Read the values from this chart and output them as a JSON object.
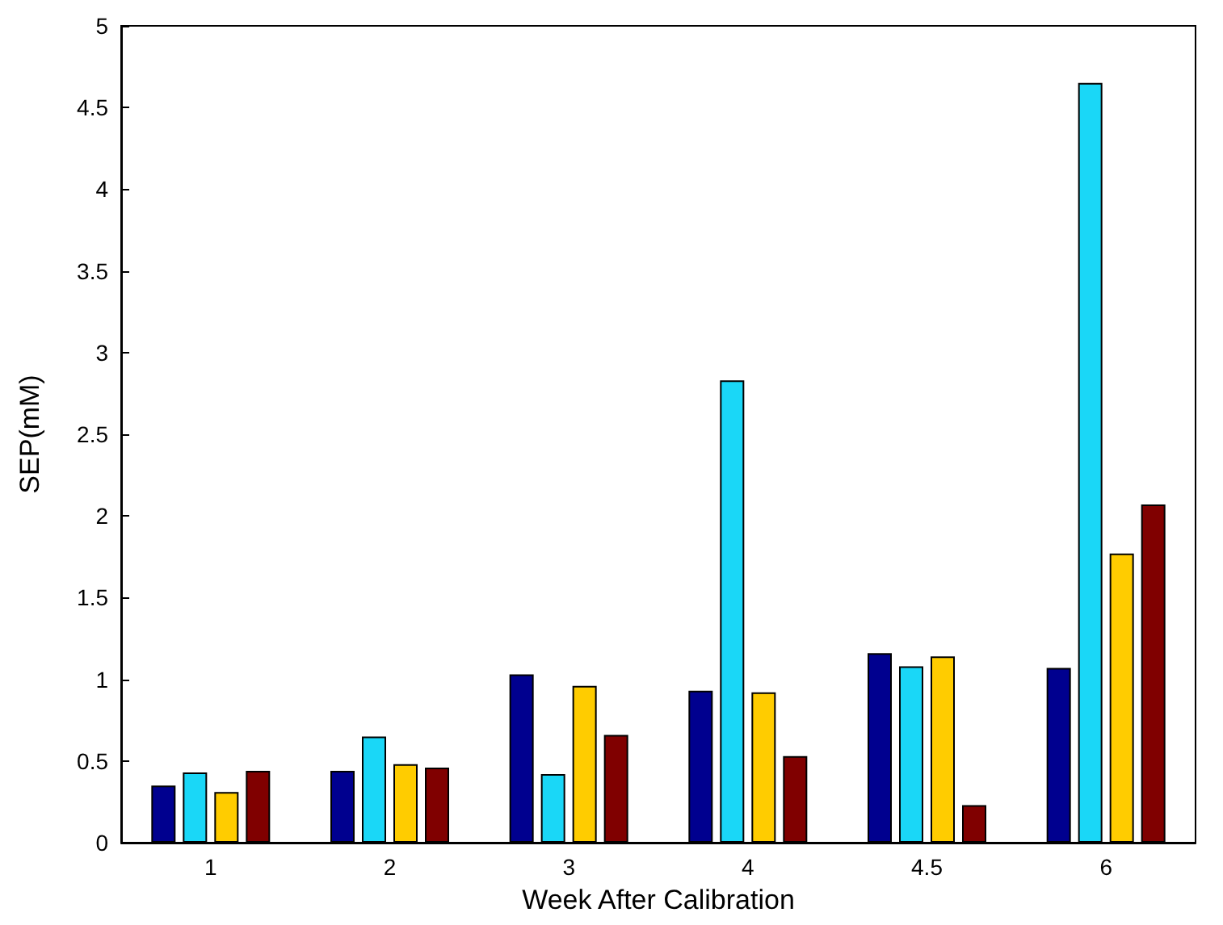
{
  "chart_data": {
    "type": "bar",
    "xlabel": "Week After Calibration",
    "ylabel": "SEP(mM)",
    "categories": [
      "1",
      "2",
      "3",
      "4",
      "4.5",
      "6"
    ],
    "series": [
      {
        "color": "#00008f",
        "values": [
          0.35,
          0.44,
          1.03,
          0.93,
          1.16,
          1.07
        ]
      },
      {
        "color": "#1ad7f7",
        "values": [
          0.43,
          0.65,
          0.42,
          2.83,
          1.08,
          4.65
        ]
      },
      {
        "color": "#ffcc00",
        "values": [
          0.31,
          0.48,
          0.96,
          0.92,
          1.14,
          1.77
        ]
      },
      {
        "color": "#800000",
        "values": [
          0.44,
          0.46,
          0.66,
          0.53,
          0.23,
          2.07
        ]
      }
    ],
    "ylim": [
      0,
      5
    ],
    "yticks": [
      0,
      0.5,
      1,
      1.5,
      2,
      2.5,
      3,
      3.5,
      4,
      4.5,
      5
    ],
    "grid": false
  }
}
